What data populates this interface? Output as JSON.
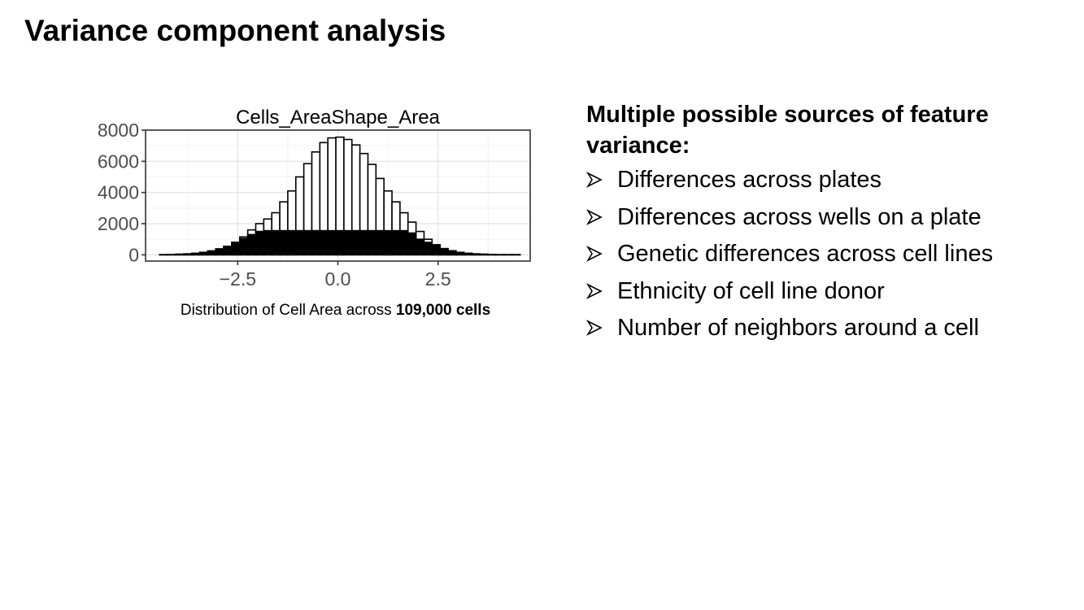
{
  "slide": {
    "title": "Variance component analysis"
  },
  "figure": {
    "caption_prefix": "Distribution of Cell Area across ",
    "caption_bold": "109,000 cells"
  },
  "chart_data": {
    "type": "bar",
    "title": "Cells_AreaShape_Area",
    "xlabel": "",
    "ylabel": "",
    "xlim": [
      -4.8,
      4.8
    ],
    "ylim": [
      -400,
      8000
    ],
    "xticks": [
      -2.5,
      0.0,
      2.5
    ],
    "xtick_labels": [
      "−2.5",
      "0.0",
      "2.5"
    ],
    "yticks": [
      0,
      2000,
      4000,
      6000,
      8000
    ],
    "ytick_labels": [
      "0",
      "2000",
      "4000",
      "6000",
      "8000"
    ],
    "grid": true,
    "bin_centers": [
      -4.35,
      -4.15,
      -3.95,
      -3.75,
      -3.55,
      -3.35,
      -3.15,
      -2.95,
      -2.75,
      -2.55,
      -2.35,
      -2.15,
      -1.95,
      -1.75,
      -1.55,
      -1.35,
      -1.15,
      -0.95,
      -0.75,
      -0.55,
      -0.35,
      -0.15,
      0.05,
      0.25,
      0.45,
      0.65,
      0.85,
      1.05,
      1.25,
      1.45,
      1.65,
      1.85,
      2.05,
      2.25,
      2.45,
      2.65,
      2.85,
      3.05,
      3.25,
      3.45,
      3.65,
      3.85,
      4.05,
      4.25,
      4.45
    ],
    "bin_width": 0.2,
    "series": [
      {
        "fill": "#ffffff",
        "values": [
          10,
          20,
          40,
          60,
          100,
          160,
          250,
          380,
          550,
          800,
          1150,
          1600,
          2000,
          2300,
          2700,
          3400,
          4100,
          5000,
          5850,
          6600,
          7200,
          7500,
          7550,
          7400,
          7050,
          6500,
          5800,
          4900,
          4100,
          3400,
          2700,
          2100,
          1500,
          1000,
          650,
          400,
          260,
          160,
          100,
          60,
          40,
          20,
          10,
          10,
          10
        ]
      },
      {
        "fill": "#000000",
        "values": [
          10,
          20,
          40,
          60,
          100,
          160,
          250,
          380,
          550,
          800,
          1050,
          1300,
          1500,
          1550,
          1550,
          1550,
          1550,
          1550,
          1550,
          1550,
          1550,
          1550,
          1550,
          1550,
          1550,
          1550,
          1550,
          1550,
          1550,
          1550,
          1550,
          1400,
          1000,
          800,
          600,
          400,
          260,
          160,
          100,
          60,
          40,
          20,
          10,
          10,
          10
        ]
      }
    ]
  },
  "sources": {
    "heading": "Multiple possible sources of feature variance:",
    "items": [
      "Differences across plates",
      "Differences across wells on a plate",
      "Genetic differences across cell lines",
      "Ethnicity of cell line donor",
      "Number of neighbors around a cell"
    ]
  }
}
